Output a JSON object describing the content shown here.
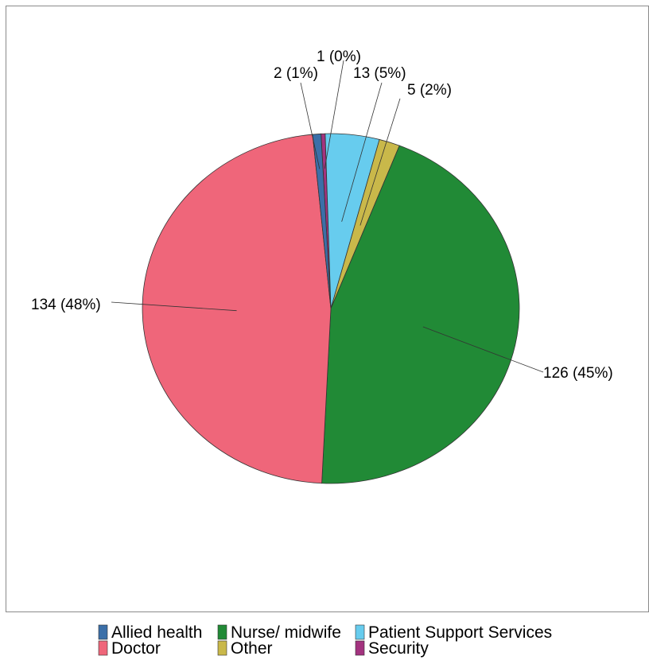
{
  "chart_data": {
    "type": "pie",
    "title": "",
    "slices": [
      {
        "name": "Allied health",
        "value": 2,
        "label": "2 (1%)",
        "color": "#3B6FA8"
      },
      {
        "name": "Doctor",
        "value": 134,
        "label": "134 (48%)",
        "color": "#EF667A"
      },
      {
        "name": "Nurse/ midwife",
        "value": 126,
        "label": "126 (45%)",
        "color": "#218A36"
      },
      {
        "name": "Other",
        "value": 5,
        "label": "5 (2%)",
        "color": "#C9B84A"
      },
      {
        "name": "Patient Support Services",
        "value": 13,
        "label": "13 (5%)",
        "color": "#67CCEE"
      },
      {
        "name": "Security",
        "value": 1,
        "label": "1 (0%)",
        "color": "#A3337F"
      }
    ],
    "legend": {
      "placement": "bottom",
      "columns": 3,
      "items": [
        {
          "label": "Allied health",
          "color": "#3B6FA8"
        },
        {
          "label": "Nurse/ midwife",
          "color": "#218A36"
        },
        {
          "label": "Patient Support Services",
          "color": "#67CCEE"
        },
        {
          "label": "Doctor",
          "color": "#EF667A"
        },
        {
          "label": "Other",
          "color": "#C9B84A"
        },
        {
          "label": "Security",
          "color": "#A3337F"
        }
      ]
    }
  }
}
